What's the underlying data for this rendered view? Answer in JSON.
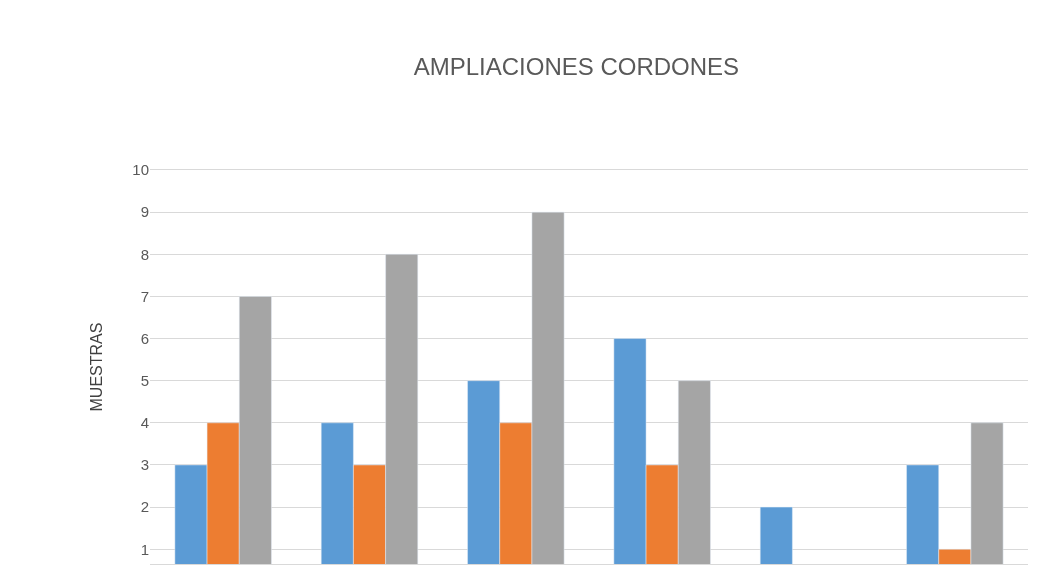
{
  "chart_data": {
    "type": "bar",
    "title": "AMPLIACIONES CORDONES",
    "ylabel": "MUESTRAS",
    "categories": [
      null,
      null,
      null,
      null,
      null,
      null
    ],
    "series": [
      {
        "color": "#5b9bd5",
        "values": [
          3,
          4,
          5,
          6,
          2,
          3
        ]
      },
      {
        "color": "#ed7d31",
        "values": [
          4,
          3,
          4,
          3,
          null,
          1
        ]
      },
      {
        "color": "#a5a5a5",
        "values": [
          7,
          8,
          9,
          5,
          null,
          4
        ]
      }
    ],
    "ylim": [
      0.65,
      10
    ],
    "yticks": [
      1,
      2,
      3,
      4,
      5,
      6,
      7,
      8,
      9,
      10
    ],
    "grid": "y"
  }
}
